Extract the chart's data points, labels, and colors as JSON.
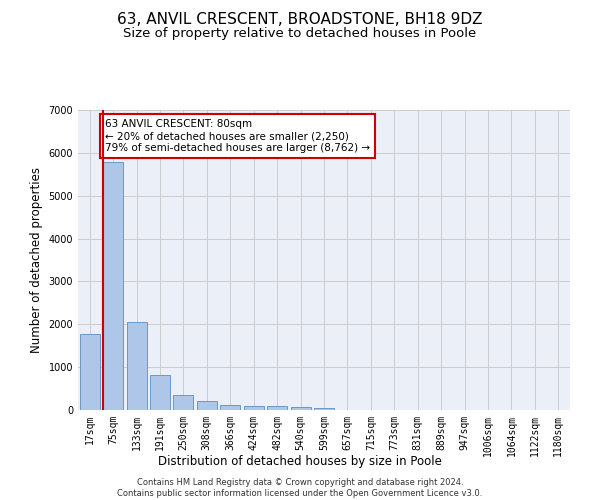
{
  "title": "63, ANVIL CRESCENT, BROADSTONE, BH18 9DZ",
  "subtitle": "Size of property relative to detached houses in Poole",
  "xlabel": "Distribution of detached houses by size in Poole",
  "ylabel": "Number of detached properties",
  "footer_line1": "Contains HM Land Registry data © Crown copyright and database right 2024.",
  "footer_line2": "Contains public sector information licensed under the Open Government Licence v3.0.",
  "categories": [
    "17sqm",
    "75sqm",
    "133sqm",
    "191sqm",
    "250sqm",
    "308sqm",
    "366sqm",
    "424sqm",
    "482sqm",
    "540sqm",
    "599sqm",
    "657sqm",
    "715sqm",
    "773sqm",
    "831sqm",
    "889sqm",
    "947sqm",
    "1006sqm",
    "1064sqm",
    "1122sqm",
    "1180sqm"
  ],
  "values": [
    1780,
    5780,
    2060,
    820,
    360,
    215,
    120,
    100,
    95,
    65,
    55,
    0,
    0,
    0,
    0,
    0,
    0,
    0,
    0,
    0,
    0
  ],
  "bar_color": "#aec6e8",
  "bar_edge_color": "#5a8fc2",
  "property_line_color": "#cc0000",
  "annotation_box_color": "#ffffff",
  "annotation_box_edge_color": "#cc0000",
  "property_label": "63 ANVIL CRESCENT: 80sqm",
  "annotation_line1": "← 20% of detached houses are smaller (2,250)",
  "annotation_line2": "79% of semi-detached houses are larger (8,762) →",
  "ylim": [
    0,
    7000
  ],
  "yticks": [
    0,
    1000,
    2000,
    3000,
    4000,
    5000,
    6000,
    7000
  ],
  "grid_color": "#cccccc",
  "bg_color": "#eaeff8",
  "title_fontsize": 11,
  "subtitle_fontsize": 9.5,
  "axis_label_fontsize": 8.5,
  "tick_fontsize": 7,
  "footer_fontsize": 6
}
